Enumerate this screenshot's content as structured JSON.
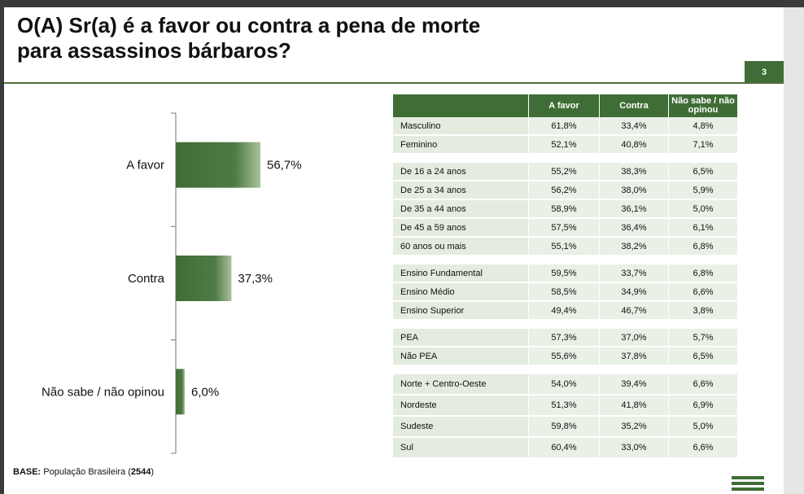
{
  "title": {
    "line1": "O(A) Sr(a) é a favor ou contra a pena de morte",
    "line2": "para assassinos bárbaros?"
  },
  "page_number": "3",
  "colors": {
    "accent": "#3f6d35",
    "row_bg": "#e9f0e5"
  },
  "chart_data": {
    "type": "bar",
    "orientation": "horizontal",
    "categories": [
      "A favor",
      "Contra",
      "Não sabe / não opinou"
    ],
    "values": [
      56.7,
      37.3,
      6.0
    ],
    "value_labels": [
      "56,7%",
      "37,3%",
      "6,0%"
    ],
    "xlim": [
      0,
      100
    ],
    "grid": false
  },
  "table": {
    "headers": [
      "",
      "A favor",
      "Contra",
      "Não sabe / não opinou"
    ],
    "groups": [
      [
        {
          "label": "Masculino",
          "values": [
            "61,8%",
            "33,4%",
            "4,8%"
          ]
        },
        {
          "label": "Feminino",
          "values": [
            "52,1%",
            "40,8%",
            "7,1%"
          ]
        }
      ],
      [
        {
          "label": "De 16 a 24 anos",
          "values": [
            "55,2%",
            "38,3%",
            "6,5%"
          ]
        },
        {
          "label": "De 25 a 34 anos",
          "values": [
            "56,2%",
            "38,0%",
            "5,9%"
          ]
        },
        {
          "label": "De 35 a 44 anos",
          "values": [
            "58,9%",
            "36,1%",
            "5,0%"
          ]
        },
        {
          "label": "De 45 a 59 anos",
          "values": [
            "57,5%",
            "36,4%",
            "6,1%"
          ]
        },
        {
          "label": "60 anos ou mais",
          "values": [
            "55,1%",
            "38,2%",
            "6,8%"
          ]
        }
      ],
      [
        {
          "label": "Ensino Fundamental",
          "values": [
            "59,5%",
            "33,7%",
            "6,8%"
          ]
        },
        {
          "label": "Ensino Médio",
          "values": [
            "58,5%",
            "34,9%",
            "6,6%"
          ]
        },
        {
          "label": "Ensino Superior",
          "values": [
            "49,4%",
            "46,7%",
            "3,8%"
          ]
        }
      ],
      [
        {
          "label": "PEA",
          "values": [
            "57,3%",
            "37,0%",
            "5,7%"
          ]
        },
        {
          "label": "Não PEA",
          "values": [
            "55,6%",
            "37,8%",
            "6,5%"
          ]
        }
      ],
      [
        {
          "label": "Norte + Centro-Oeste",
          "values": [
            "54,0%",
            "39,4%",
            "6,6%"
          ]
        },
        {
          "label": "Nordeste",
          "values": [
            "51,3%",
            "41,8%",
            "6,9%"
          ]
        },
        {
          "label": "Sudeste",
          "values": [
            "59,8%",
            "35,2%",
            "5,0%"
          ]
        },
        {
          "label": "Sul",
          "values": [
            "60,4%",
            "33,0%",
            "6,6%"
          ]
        }
      ]
    ]
  },
  "base": {
    "label": "BASE:",
    "text": "População Brasileira",
    "n": "2544"
  }
}
